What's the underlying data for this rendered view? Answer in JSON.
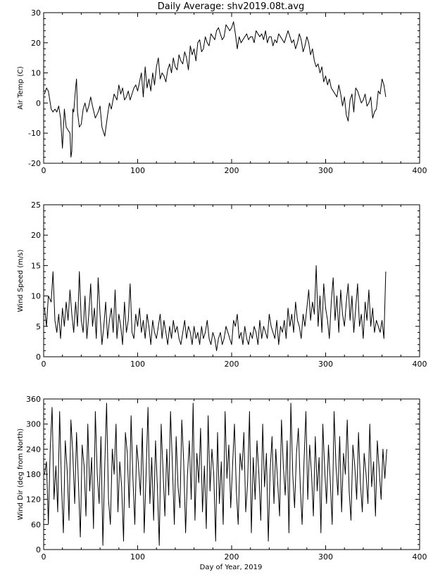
{
  "figure": {
    "title": "Daily Average: shv2019.08t.avg",
    "xlabel": "Day of Year, 2019"
  },
  "chart_data": [
    {
      "type": "line",
      "ylabel": "Air Temp (C)",
      "xlim": [
        0,
        400
      ],
      "ylim": [
        -20,
        30
      ],
      "xticks": [
        "0",
        "100",
        "200",
        "300",
        "400"
      ],
      "yticks": [
        "-20",
        "-10",
        "0",
        "10",
        "20",
        "30"
      ],
      "series": [
        {
          "x": [
            1,
            3,
            5,
            8,
            10,
            12,
            14,
            16,
            18,
            20,
            22,
            24,
            26,
            28,
            29,
            30,
            31,
            32,
            34,
            35,
            36,
            38,
            40,
            42,
            44,
            46,
            48,
            50,
            52,
            55,
            58,
            60,
            62,
            65,
            68,
            70,
            72,
            75,
            78,
            80,
            82,
            84,
            86,
            88,
            90,
            92,
            94,
            96,
            98,
            100,
            102,
            104,
            106,
            108,
            110,
            112,
            114,
            116,
            118,
            120,
            122,
            124,
            126,
            128,
            130,
            132,
            134,
            136,
            138,
            140,
            142,
            144,
            146,
            148,
            150,
            152,
            154,
            156,
            158,
            160,
            162,
            164,
            166,
            168,
            170,
            172,
            174,
            176,
            178,
            180,
            182,
            184,
            186,
            188,
            190,
            192,
            194,
            196,
            198,
            200,
            202,
            204,
            206,
            208,
            210,
            212,
            214,
            216,
            218,
            220,
            222,
            224,
            226,
            228,
            230,
            232,
            234,
            236,
            238,
            240,
            242,
            244,
            246,
            248,
            250,
            252,
            254,
            256,
            258,
            260,
            262,
            264,
            266,
            268,
            270,
            272,
            274,
            276,
            278,
            280,
            282,
            284,
            286,
            288,
            290,
            292,
            294,
            296,
            298,
            300,
            302,
            304,
            306,
            308,
            310,
            312,
            314,
            316,
            318,
            320,
            322,
            324,
            326,
            328,
            330,
            332,
            334,
            336,
            338,
            340,
            342,
            344,
            346,
            348,
            350,
            352,
            354,
            356,
            358,
            360,
            362,
            364
          ],
          "y": [
            3,
            5,
            4,
            -2,
            -3,
            -2,
            -3,
            -1,
            -5,
            -15,
            -2,
            -8,
            -9,
            -10,
            -18,
            -16,
            -2,
            -3,
            5,
            8,
            -3,
            -8,
            -7,
            -2,
            0,
            -3,
            -1,
            2,
            -1,
            -5,
            -3,
            -1,
            -8,
            -11,
            -4,
            0,
            -2,
            3,
            1,
            6,
            3,
            5,
            1,
            2,
            4,
            1,
            3,
            5,
            6,
            4,
            7,
            10,
            2,
            12,
            5,
            8,
            4,
            10,
            6,
            12,
            15,
            8,
            10,
            9,
            7,
            11,
            13,
            10,
            15,
            12,
            11,
            16,
            14,
            13,
            17,
            15,
            11,
            19,
            16,
            18,
            14,
            20,
            21,
            17,
            18,
            22,
            20,
            19,
            23,
            22,
            21,
            24,
            25,
            23,
            21,
            22,
            26,
            25,
            24,
            25,
            27,
            23,
            18,
            22,
            20,
            21,
            22,
            23,
            21,
            22,
            22,
            20,
            24,
            23,
            22,
            23,
            21,
            24,
            20,
            22,
            22,
            19,
            21,
            20,
            23,
            22,
            21,
            20,
            22,
            24,
            22,
            20,
            21,
            18,
            20,
            23,
            21,
            17,
            19,
            22,
            20,
            16,
            18,
            14,
            12,
            13,
            10,
            12,
            7,
            9,
            6,
            8,
            5,
            4,
            3,
            2,
            6,
            3,
            -1,
            2,
            -4,
            -6,
            1,
            3,
            -3,
            5,
            4,
            2,
            0,
            1,
            3,
            -1,
            0,
            2,
            -5,
            -3,
            -2,
            4,
            3,
            8,
            6,
            2
          ]
        }
      ]
    },
    {
      "type": "line",
      "ylabel": "Wind Speed (m/s)",
      "xlim": [
        0,
        400
      ],
      "ylim": [
        0,
        25
      ],
      "xticks": [
        "0",
        "100",
        "200",
        "300",
        "400"
      ],
      "yticks": [
        "0",
        "5",
        "10",
        "15",
        "20",
        "25"
      ],
      "series": [
        {
          "x": [
            1,
            3,
            5,
            8,
            10,
            12,
            14,
            16,
            18,
            20,
            22,
            24,
            26,
            28,
            30,
            32,
            34,
            36,
            38,
            40,
            42,
            44,
            46,
            48,
            50,
            52,
            54,
            56,
            58,
            60,
            62,
            64,
            66,
            68,
            70,
            72,
            74,
            76,
            78,
            80,
            82,
            84,
            86,
            88,
            90,
            92,
            94,
            96,
            98,
            100,
            102,
            104,
            106,
            108,
            110,
            112,
            114,
            116,
            118,
            120,
            122,
            124,
            126,
            128,
            130,
            132,
            134,
            136,
            138,
            140,
            142,
            144,
            146,
            148,
            150,
            152,
            154,
            156,
            158,
            160,
            162,
            164,
            166,
            168,
            170,
            172,
            174,
            176,
            178,
            180,
            182,
            184,
            186,
            188,
            190,
            192,
            194,
            196,
            198,
            200,
            202,
            204,
            206,
            208,
            210,
            212,
            214,
            216,
            218,
            220,
            222,
            224,
            226,
            228,
            230,
            232,
            234,
            236,
            238,
            240,
            242,
            244,
            246,
            248,
            250,
            252,
            254,
            256,
            258,
            260,
            262,
            264,
            266,
            268,
            270,
            272,
            274,
            276,
            278,
            280,
            282,
            284,
            286,
            288,
            290,
            292,
            294,
            296,
            298,
            300,
            302,
            304,
            306,
            308,
            310,
            312,
            314,
            316,
            318,
            320,
            322,
            324,
            326,
            328,
            330,
            332,
            334,
            336,
            338,
            340,
            342,
            344,
            346,
            348,
            350,
            352,
            354,
            356,
            358,
            360,
            362,
            364
          ],
          "y": [
            8,
            5,
            10,
            9,
            14,
            6,
            4,
            7,
            3,
            8,
            5,
            9,
            6,
            11,
            7,
            4,
            9,
            5,
            14,
            6,
            4,
            10,
            3,
            7,
            12,
            5,
            8,
            3,
            13,
            7,
            2,
            5,
            9,
            3,
            6,
            8,
            4,
            11,
            3,
            7,
            5,
            2,
            9,
            4,
            6,
            12,
            4,
            3,
            7,
            5,
            8,
            4,
            6,
            3,
            7,
            5,
            2,
            6,
            4,
            3,
            5,
            7,
            3,
            6,
            4,
            2,
            5,
            3,
            6,
            4,
            5,
            3,
            2,
            4,
            6,
            3,
            5,
            4,
            2,
            5,
            3,
            4,
            2,
            5,
            3,
            4,
            6,
            3,
            2,
            4,
            3,
            1,
            3,
            4,
            2,
            3,
            5,
            4,
            3,
            2,
            6,
            5,
            7,
            3,
            4,
            2,
            5,
            3,
            2,
            4,
            3,
            5,
            4,
            2,
            6,
            3,
            5,
            4,
            3,
            7,
            5,
            4,
            3,
            6,
            2,
            5,
            4,
            6,
            3,
            8,
            5,
            7,
            4,
            9,
            6,
            5,
            3,
            7,
            5,
            8,
            11,
            6,
            9,
            7,
            15,
            5,
            10,
            4,
            12,
            8,
            6,
            3,
            9,
            13,
            6,
            10,
            4,
            11,
            7,
            5,
            9,
            12,
            6,
            10,
            4,
            8,
            12,
            5,
            7,
            3,
            9,
            6,
            11,
            5,
            8,
            4,
            6,
            5,
            4,
            6,
            3,
            14
          ]
        }
      ]
    },
    {
      "type": "line",
      "ylabel": "Wind Dir (deg from North)",
      "xlabel": "Day of Year, 2019",
      "xlim": [
        0,
        400
      ],
      "ylim": [
        0,
        360
      ],
      "xticks": [
        "0",
        "100",
        "200",
        "300",
        "400"
      ],
      "yticks": [
        "0",
        "60",
        "120",
        "180",
        "240",
        "300",
        "360"
      ],
      "series": [
        {
          "x": [
            1,
            3,
            5,
            7,
            9,
            11,
            13,
            15,
            17,
            19,
            21,
            23,
            25,
            27,
            29,
            31,
            33,
            35,
            37,
            39,
            41,
            43,
            45,
            47,
            49,
            51,
            53,
            55,
            57,
            59,
            61,
            63,
            65,
            67,
            69,
            71,
            73,
            75,
            77,
            79,
            81,
            83,
            85,
            87,
            89,
            91,
            93,
            95,
            97,
            99,
            101,
            103,
            105,
            107,
            109,
            111,
            113,
            115,
            117,
            119,
            121,
            123,
            125,
            127,
            129,
            131,
            133,
            135,
            137,
            139,
            141,
            143,
            145,
            147,
            149,
            151,
            153,
            155,
            157,
            159,
            161,
            163,
            165,
            167,
            169,
            171,
            173,
            175,
            177,
            179,
            181,
            183,
            185,
            187,
            189,
            191,
            193,
            195,
            197,
            199,
            201,
            203,
            205,
            207,
            209,
            211,
            213,
            215,
            217,
            219,
            221,
            223,
            225,
            227,
            229,
            231,
            233,
            235,
            237,
            239,
            241,
            243,
            245,
            247,
            249,
            251,
            253,
            255,
            257,
            259,
            261,
            263,
            265,
            267,
            269,
            271,
            273,
            275,
            277,
            279,
            281,
            283,
            285,
            287,
            289,
            291,
            293,
            295,
            297,
            299,
            301,
            303,
            305,
            307,
            309,
            311,
            313,
            315,
            317,
            319,
            321,
            323,
            325,
            327,
            329,
            331,
            333,
            335,
            337,
            339,
            341,
            343,
            345,
            347,
            349,
            351,
            353,
            355,
            357,
            359,
            361,
            363,
            365
          ],
          "y": [
            180,
            210,
            60,
            240,
            340,
            120,
            200,
            90,
            330,
            150,
            40,
            260,
            190,
            70,
            310,
            230,
            110,
            280,
            160,
            30,
            250,
            200,
            80,
            300,
            140,
            220,
            50,
            330,
            180,
            110,
            270,
            10,
            200,
            350,
            120,
            60,
            240,
            180,
            300,
            90,
            210,
            150,
            20,
            280,
            230,
            100,
            320,
            170,
            60,
            250,
            200,
            130,
            290,
            40,
            180,
            340,
            110,
            220,
            70,
            260,
            150,
            10,
            300,
            190,
            80,
            240,
            130,
            330,
            200,
            60,
            270,
            150,
            100,
            310,
            210,
            40,
            180,
            260,
            120,
            350,
            70,
            230,
            160,
            290,
            90,
            200,
            50,
            320,
            140,
            240,
            180,
            20,
            280,
            110,
            210,
            60,
            330,
            170,
            250,
            100,
            200,
            300,
            140,
            60,
            230,
            190,
            280,
            90,
            160,
            330,
            40,
            220,
            120,
            260,
            180,
            70,
            300,
            150,
            230,
            20,
            190,
            270,
            110,
            240,
            160,
            80,
            310,
            200,
            130,
            260,
            40,
            350,
            180,
            100,
            230,
            290,
            150,
            60,
            210,
            330,
            120,
            250,
            180,
            80,
            270,
            140,
            220,
            40,
            300,
            190,
            110,
            250,
            160,
            60,
            330,
            200,
            130,
            270,
            90,
            230,
            180,
            310,
            140,
            70,
            250,
            200,
            120,
            280,
            160,
            90,
            230,
            180,
            110,
            300,
            150,
            210,
            80,
            260,
            190,
            120,
            240,
            170,
            240
          ]
        }
      ]
    }
  ]
}
